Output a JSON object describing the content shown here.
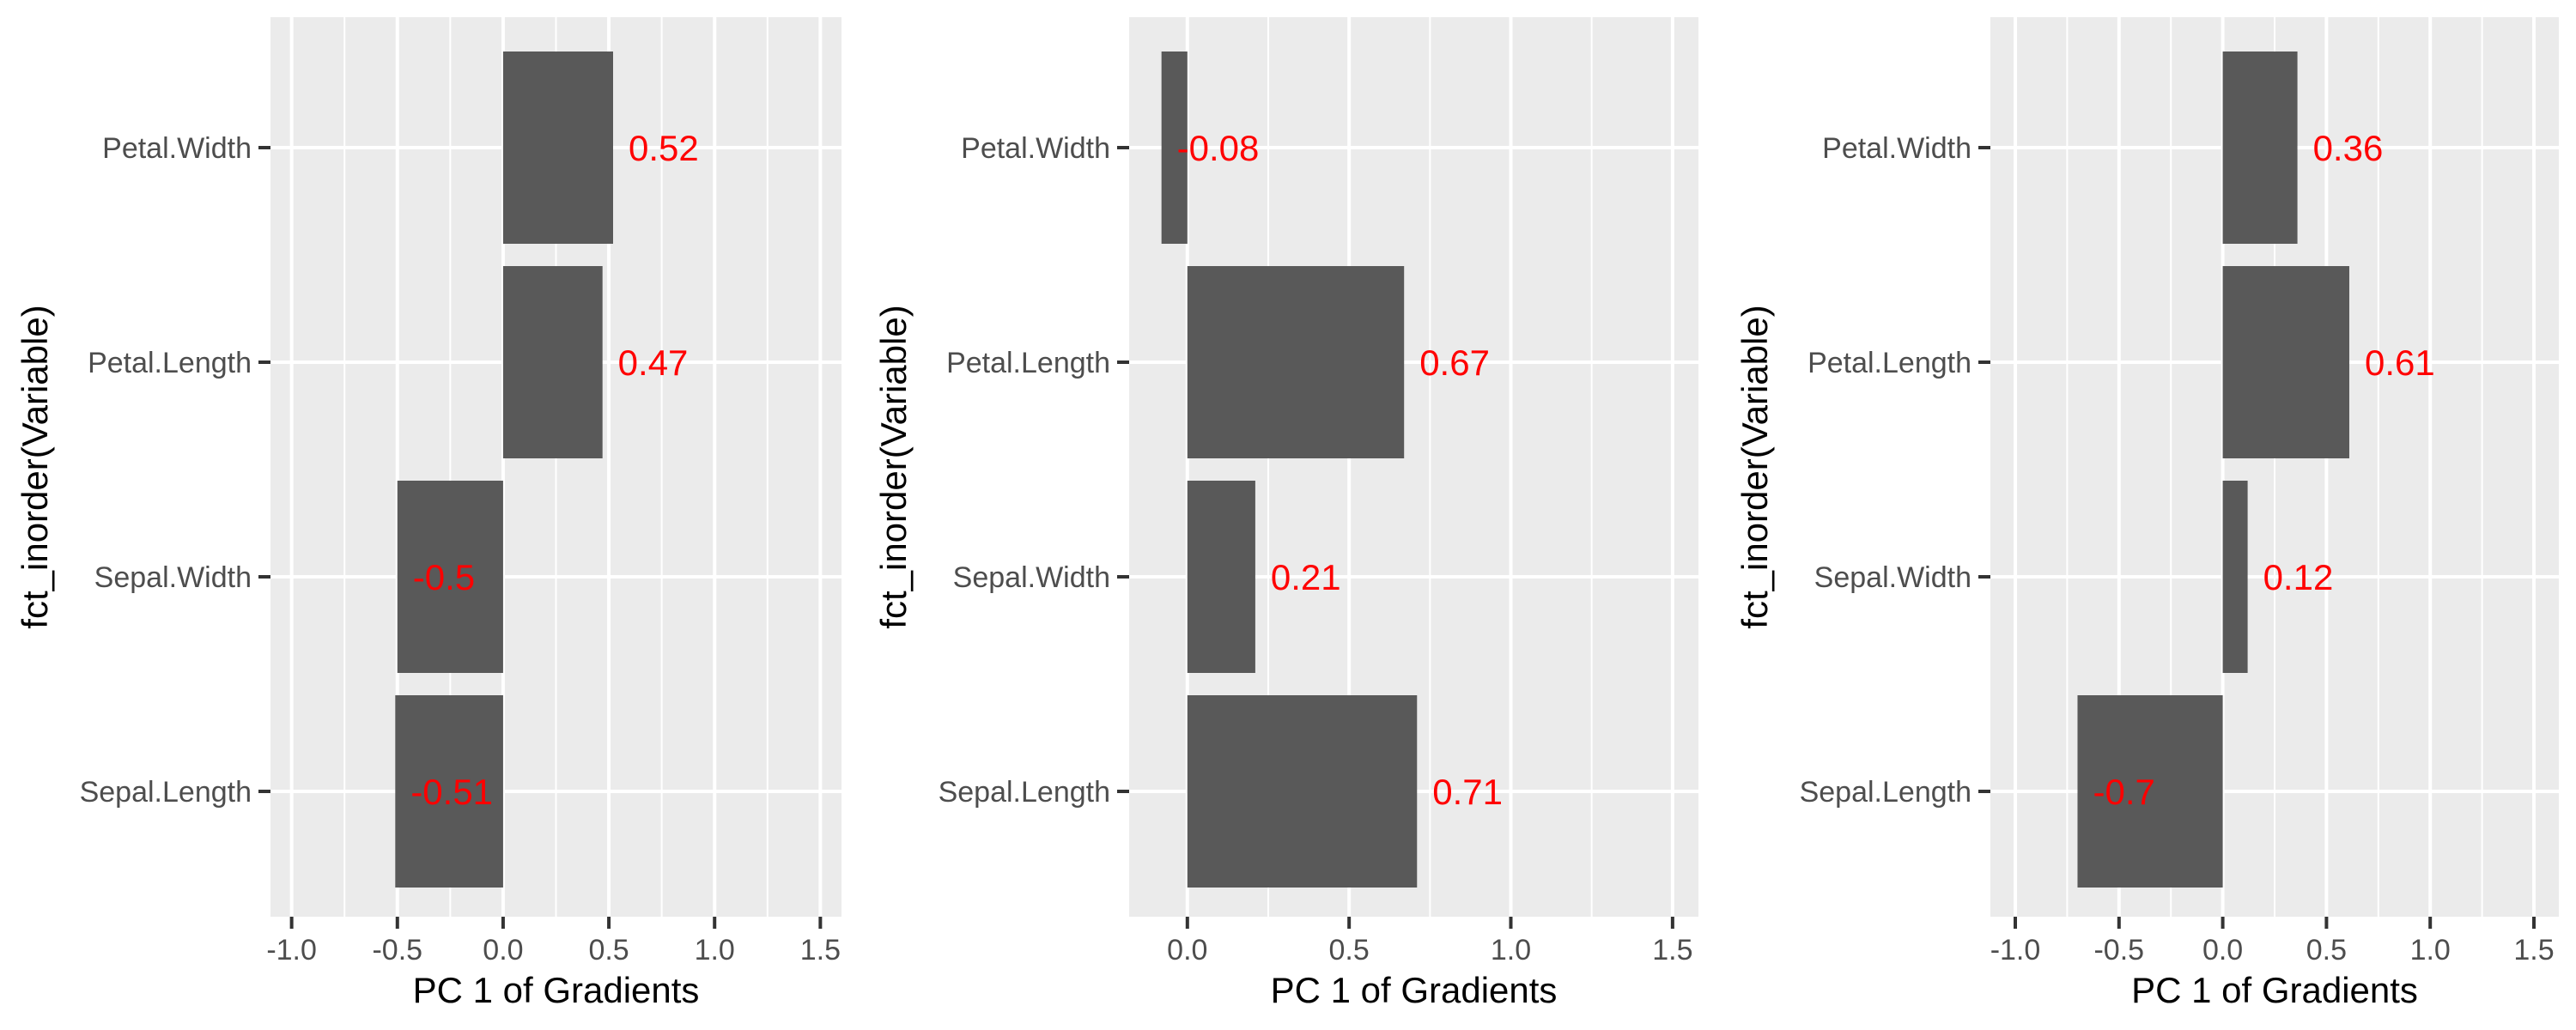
{
  "label_color": "#ff0000",
  "bar_color": "#595959",
  "chart_data": [
    {
      "type": "bar",
      "orientation": "horizontal",
      "categories": [
        "Petal.Width",
        "Petal.Length",
        "Sepal.Width",
        "Sepal.Length"
      ],
      "values": [
        0.52,
        0.47,
        -0.5,
        -0.51
      ],
      "data_labels": [
        "0.52",
        "0.47",
        "-0.5",
        "-0.51"
      ],
      "xlabel": "PC 1 of Gradients",
      "ylabel": "fct_inorder(Variable)",
      "xlim": [
        -1.1,
        1.6
      ],
      "xticks": [
        -1.0,
        -0.5,
        0.0,
        0.5,
        1.0,
        1.5
      ],
      "xtick_labels": [
        "-1.0",
        "-0.5",
        "0.0",
        "0.5",
        "1.0",
        "1.5"
      ],
      "grid": true
    },
    {
      "type": "bar",
      "orientation": "horizontal",
      "categories": [
        "Petal.Width",
        "Petal.Length",
        "Sepal.Width",
        "Sepal.Length"
      ],
      "values": [
        -0.08,
        0.67,
        0.21,
        0.71
      ],
      "data_labels": [
        "-0.08",
        "0.67",
        "0.21",
        "0.71"
      ],
      "xlabel": "PC 1 of Gradients",
      "ylabel": "fct_inorder(Variable)",
      "xlim": [
        -0.18,
        1.58
      ],
      "xticks": [
        0.0,
        0.5,
        1.0,
        1.5
      ],
      "xtick_labels": [
        "0.0",
        "0.5",
        "1.0",
        "1.5"
      ],
      "grid": true
    },
    {
      "type": "bar",
      "orientation": "horizontal",
      "categories": [
        "Petal.Width",
        "Petal.Length",
        "Sepal.Width",
        "Sepal.Length"
      ],
      "values": [
        0.36,
        0.61,
        0.12,
        -0.7
      ],
      "data_labels": [
        "0.36",
        "0.61",
        "0.12",
        "-0.7"
      ],
      "xlabel": "PC 1 of Gradients",
      "ylabel": "fct_inorder(Variable)",
      "xlim": [
        -1.12,
        1.62
      ],
      "xticks": [
        -1.0,
        -0.5,
        0.0,
        0.5,
        1.0,
        1.5
      ],
      "xtick_labels": [
        "-1.0",
        "-0.5",
        "0.0",
        "0.5",
        "1.0",
        "1.5"
      ],
      "grid": true
    }
  ]
}
